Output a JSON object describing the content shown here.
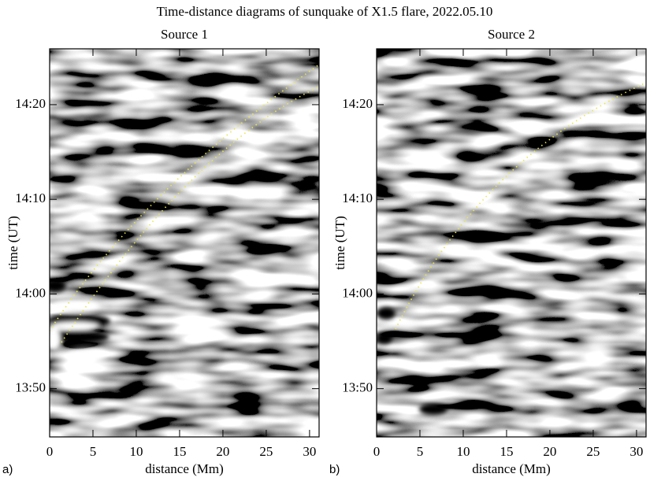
{
  "title": "Time-distance diagrams of sunquake of X1.5 flare, 2022.05.10",
  "chart_data": [
    {
      "type": "heatmap",
      "panel_label": "a)",
      "title": "Source 1",
      "x_label": "distance (Mm)",
      "y_label": "time (UT)",
      "xlim": [
        0,
        31.1
      ],
      "xticks": [
        0,
        5,
        10,
        15,
        20,
        25,
        30
      ],
      "ylim": [
        824.9,
        865.9
      ],
      "yticks": [
        {
          "value": 830,
          "label": "13:50"
        },
        {
          "value": 840,
          "label": "14:00"
        },
        {
          "value": 850,
          "label": "14:10"
        },
        {
          "value": 860,
          "label": "14:20"
        }
      ]
    },
    {
      "type": "heatmap",
      "panel_label": "b)",
      "title": "Source 2",
      "x_label": "distance (Mm)",
      "y_label": "time (UT)",
      "xlim": [
        0,
        31.1
      ],
      "xticks": [
        0,
        5,
        10,
        15,
        20,
        25,
        30
      ],
      "ylim": [
        824.9,
        865.9
      ],
      "yticks": [
        {
          "value": 830,
          "label": "13:50"
        },
        {
          "value": 840,
          "label": "14:00"
        },
        {
          "value": 850,
          "label": "14:10"
        },
        {
          "value": 860,
          "label": "14:20"
        }
      ]
    }
  ]
}
